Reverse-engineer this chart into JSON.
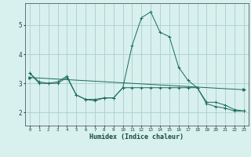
{
  "xlabel": "Humidex (Indice chaleur)",
  "bg_color": "#d8f0ee",
  "line_color": "#1a6b5a",
  "grid_color": "#aacfcc",
  "xlim": [
    -0.5,
    23.5
  ],
  "ylim": [
    1.55,
    5.75
  ],
  "xticks": [
    0,
    1,
    2,
    3,
    4,
    5,
    6,
    7,
    8,
    9,
    10,
    11,
    12,
    13,
    14,
    15,
    16,
    17,
    18,
    19,
    20,
    21,
    22,
    23
  ],
  "yticks": [
    2,
    3,
    4,
    5
  ],
  "series1_x": [
    0,
    1,
    2,
    3,
    4,
    5,
    6,
    7,
    8,
    9,
    10,
    11,
    12,
    13,
    14,
    15,
    16,
    17,
    18,
    19,
    20,
    21,
    22,
    23
  ],
  "series1_y": [
    3.35,
    3.05,
    3.0,
    3.05,
    3.25,
    2.6,
    2.45,
    2.45,
    2.5,
    2.5,
    2.85,
    2.85,
    2.85,
    2.85,
    2.85,
    2.85,
    2.85,
    2.85,
    2.85,
    2.3,
    2.2,
    2.15,
    2.05,
    2.05
  ],
  "series2_x": [
    0,
    1,
    2,
    3,
    4,
    5,
    6,
    7,
    8,
    9,
    10,
    11,
    12,
    13,
    14,
    15,
    16,
    17,
    18,
    19,
    20,
    21,
    22,
    23
  ],
  "series2_y": [
    3.35,
    3.0,
    3.0,
    3.0,
    3.2,
    2.6,
    2.45,
    2.4,
    2.5,
    2.5,
    2.85,
    4.3,
    5.25,
    5.45,
    4.75,
    4.6,
    3.55,
    3.1,
    2.85,
    2.35,
    2.35,
    2.25,
    2.1,
    2.05
  ],
  "series3_x": [
    0,
    23
  ],
  "series3_y": [
    3.2,
    2.78
  ]
}
